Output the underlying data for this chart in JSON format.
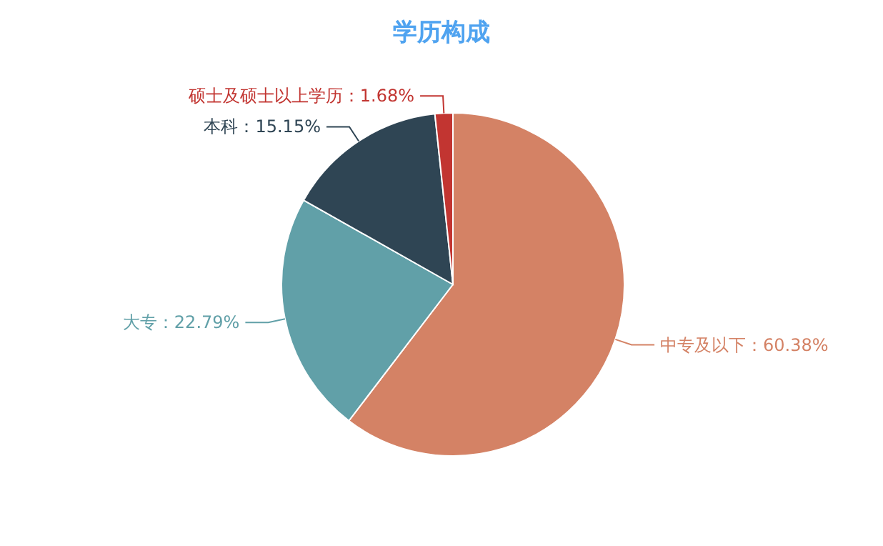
{
  "chart_data": {
    "type": "pie",
    "title": "学历构成",
    "categories": [
      "中专及以下",
      "大专",
      "本科",
      "硕士及硕士以上学历"
    ],
    "values": [
      60.38,
      22.79,
      15.15,
      1.68
    ],
    "colors": [
      "#d48265",
      "#61a0a8",
      "#2f4554",
      "#c23531"
    ],
    "value_labels": [
      "60.38%",
      "22.79%",
      "15.15%",
      "1.68%"
    ]
  }
}
